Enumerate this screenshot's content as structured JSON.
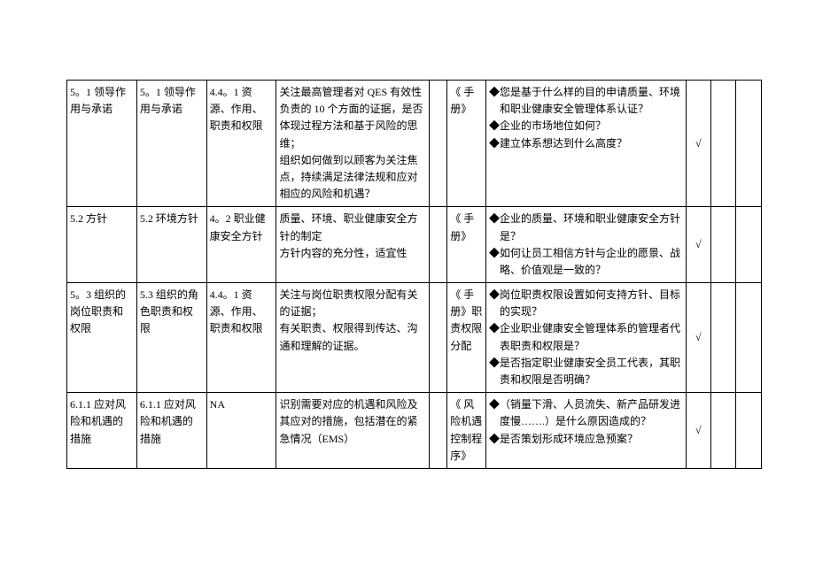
{
  "table": {
    "rows": [
      {
        "c0": "5。1 领导作用与承诺",
        "c1": "5。1 领导作用与承诺",
        "c2": "4.4。1 资源、作用、职责和权限",
        "c3": "关注最高管理者对 QES 有效性负责的 10 个方面的证据，是否体现过程方法和基于风险的思维；\n组织如何做到以顾客为关注焦点，持续满足法律法规和应对相应的风险和机遇？",
        "c4": "",
        "c5": "《 手册》",
        "c6": [
          "◆您是基于什么样的目的申请质量、环境和职业健康安全管理体系认证？",
          "◆企业的市场地位如何？",
          "◆建立体系想达到什么高度？"
        ],
        "c7": "√",
        "c8": "",
        "c9": ""
      },
      {
        "c0": "5.2 方针",
        "c1": "5.2 环境方针",
        "c2": "4。2 职业健康安全方针",
        "c3": "质量、环境、职业健康安全方针的制定\n方针内容的充分性，适宜性",
        "c4": "",
        "c5": "《 手册》",
        "c6": [
          "◆企业的质量、环境和职业健康安全方针是？",
          "◆如何让员工相信方针与企业的愿景、战略、价值观是一致的？"
        ],
        "c7": "√",
        "c8": "",
        "c9": ""
      },
      {
        "c0": "5。3 组织的岗位职责和权限",
        "c1": "5.3 组织的角色职责和权限",
        "c2": "4.4。1 资源、作用、职责和权限",
        "c3": "关注与岗位职责权限分配有关的证据；\n有关职责、权限得到传达、沟通和理解的证据。",
        "c4": "",
        "c5": "《 手册》职责权限分配",
        "c6": [
          "◆岗位职责权限设置如何支持方针、目标的实现？",
          "◆企业职业健康安全管理体系的管理者代表职责和权限是？",
          "◆是否指定职业健康安全员工代表，其职责和权限是否明确？"
        ],
        "c7": "√",
        "c8": "",
        "c9": ""
      },
      {
        "c0": "6.1.1 应对风险和机遇的措施",
        "c1": "6.1.1 应对风险和机遇的措施",
        "c2": "NA",
        "c3": "识别需要对应的机遇和风险及其应对的措施，包括潜在的紧急情况（EMS）",
        "c4": "",
        "c5": "《 风险机遇控制程序》",
        "c6": [
          "◆（销量下滑、人员流失、新产品研发进度慢…….）是什么原因造成的？",
          "◆是否策划形成环境应急预案？"
        ],
        "c7": "√",
        "c8": "",
        "c9": ""
      }
    ]
  }
}
